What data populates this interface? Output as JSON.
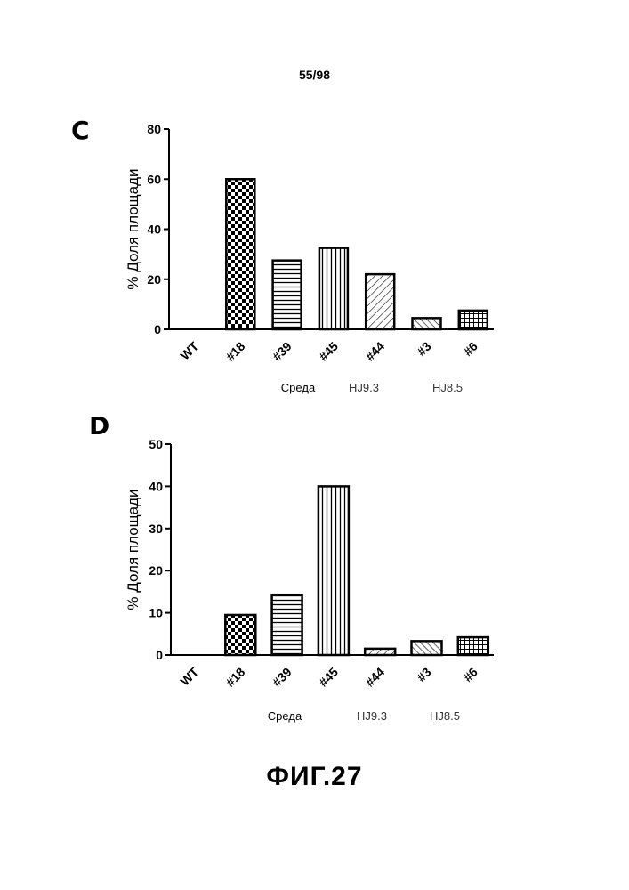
{
  "page_number": "55/98",
  "figure_title": "ФИГ.27",
  "chart_data": [
    {
      "panel": "C",
      "type": "bar",
      "ylabel": "% Доля площади",
      "xlabel": "",
      "ylim": [
        0,
        80
      ],
      "yticks": [
        0,
        20,
        40,
        60,
        80
      ],
      "categories": [
        "WT",
        "#18",
        "#39",
        "#45",
        "#44",
        "#3",
        "#6"
      ],
      "values": [
        0,
        60,
        27.5,
        32.5,
        22,
        4.5,
        7.5
      ],
      "patterns": [
        "none",
        "checker",
        "hlines",
        "vlines",
        "diag",
        "diag2",
        "grid"
      ],
      "groups": [
        {
          "label": "Среда",
          "categories": [
            "#39",
            "#45"
          ]
        },
        {
          "label": "HJ9.3",
          "categories": [
            "#44"
          ]
        },
        {
          "label": "HJ8.5",
          "categories": [
            "#3",
            "#6"
          ]
        }
      ]
    },
    {
      "panel": "D",
      "type": "bar",
      "ylabel": "% Доля площади",
      "xlabel": "",
      "ylim": [
        0,
        50
      ],
      "yticks": [
        0,
        10,
        20,
        30,
        40,
        50
      ],
      "categories": [
        "WT",
        "#18",
        "#39",
        "#45",
        "#44",
        "#3",
        "#6"
      ],
      "values": [
        0,
        9.5,
        14.3,
        40,
        1.5,
        3.3,
        4.2
      ],
      "patterns": [
        "none",
        "checker",
        "hlines",
        "vlines",
        "diag",
        "diag2",
        "grid"
      ],
      "groups": [
        {
          "label": "Среда",
          "categories": [
            "#39",
            "#45"
          ]
        },
        {
          "label": "HJ9.3",
          "categories": [
            "#44"
          ]
        },
        {
          "label": "HJ8.5",
          "categories": [
            "#3",
            "#6"
          ]
        }
      ]
    }
  ]
}
